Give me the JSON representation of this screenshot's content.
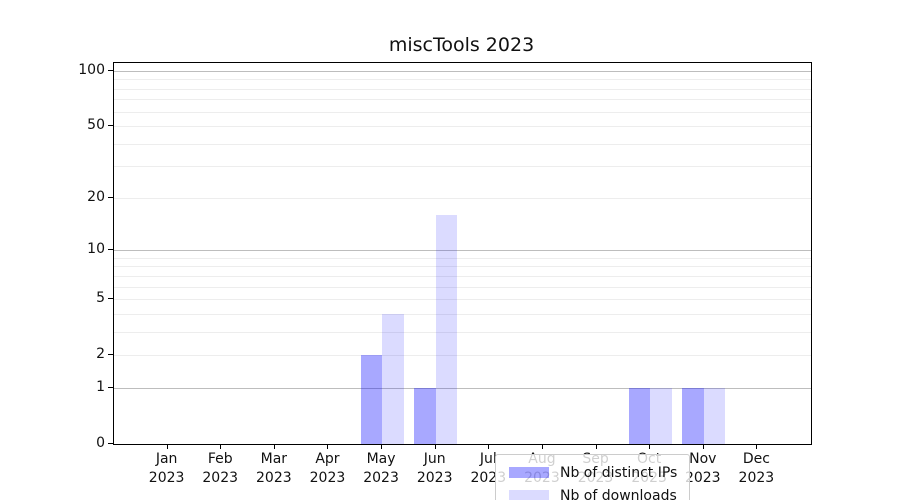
{
  "chart_data": {
    "type": "bar",
    "title": "miscTools 2023",
    "categories": [
      {
        "month": "Jan",
        "year": "2023"
      },
      {
        "month": "Feb",
        "year": "2023"
      },
      {
        "month": "Mar",
        "year": "2023"
      },
      {
        "month": "Apr",
        "year": "2023"
      },
      {
        "month": "May",
        "year": "2023"
      },
      {
        "month": "Jun",
        "year": "2023"
      },
      {
        "month": "Jul",
        "year": "2023"
      },
      {
        "month": "Aug",
        "year": "2023"
      },
      {
        "month": "Sep",
        "year": "2023"
      },
      {
        "month": "Oct",
        "year": "2023"
      },
      {
        "month": "Nov",
        "year": "2023"
      },
      {
        "month": "Dec",
        "year": "2023"
      }
    ],
    "series": [
      {
        "name": "Nb of distinct IPs",
        "color": "rgba(0,0,255,0.34)",
        "values": [
          0,
          0,
          0,
          0,
          2,
          1,
          0,
          0,
          0,
          1,
          1,
          0
        ]
      },
      {
        "name": "Nb of downloads",
        "color": "rgba(0,0,255,0.14)",
        "values": [
          0,
          0,
          0,
          0,
          4,
          16,
          0,
          0,
          0,
          1,
          1,
          0
        ]
      }
    ],
    "xlabel": "",
    "ylabel": "",
    "y_axis": {
      "scale": "log1p",
      "ticks": [
        0,
        1,
        2,
        5,
        10,
        20,
        50,
        100
      ],
      "major_gridlines": [
        1,
        10,
        100
      ],
      "minor_gridlines": [
        2,
        3,
        4,
        5,
        6,
        7,
        8,
        9,
        20,
        30,
        40,
        50,
        60,
        70,
        80,
        90
      ],
      "range": [
        0,
        100
      ]
    },
    "grid": "both",
    "legend_position": "inside lower center",
    "colors": {
      "background": "#ffffff",
      "axis": "#000000",
      "major_grid": "#bdbdbd",
      "minor_grid": "#ededed"
    }
  }
}
